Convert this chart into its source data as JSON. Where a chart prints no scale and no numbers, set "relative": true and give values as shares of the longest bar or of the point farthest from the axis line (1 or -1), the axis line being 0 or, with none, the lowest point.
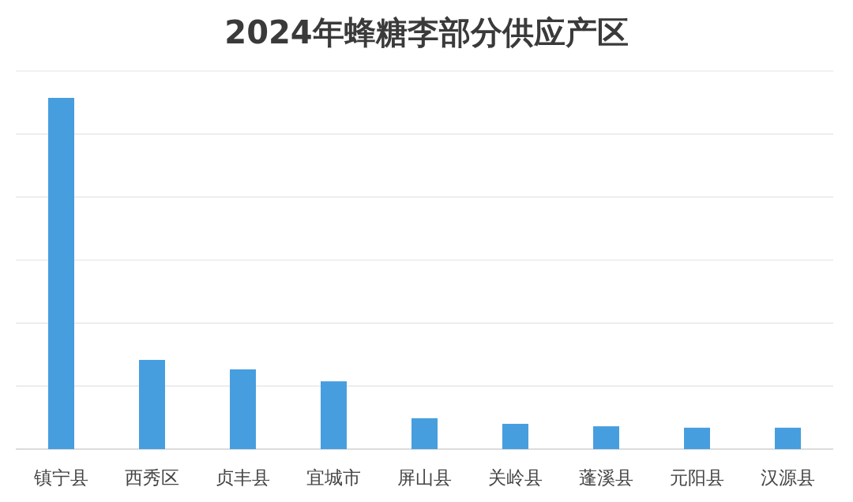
{
  "chart_data": {
    "type": "bar",
    "title": "2024年蜂糖李部分供应产区",
    "categories": [
      "镇宁县",
      "西秀区",
      "贞丰县",
      "宜城市",
      "屏山县",
      "关岭县",
      "蓬溪县",
      "元阳县",
      "汉源县"
    ],
    "values": [
      1,
      0.254,
      0.227,
      0.193,
      0.088,
      0.072,
      0.065,
      0.061,
      0.061
    ],
    "color": "#479ede",
    "relative": true,
    "grid": "y"
  }
}
